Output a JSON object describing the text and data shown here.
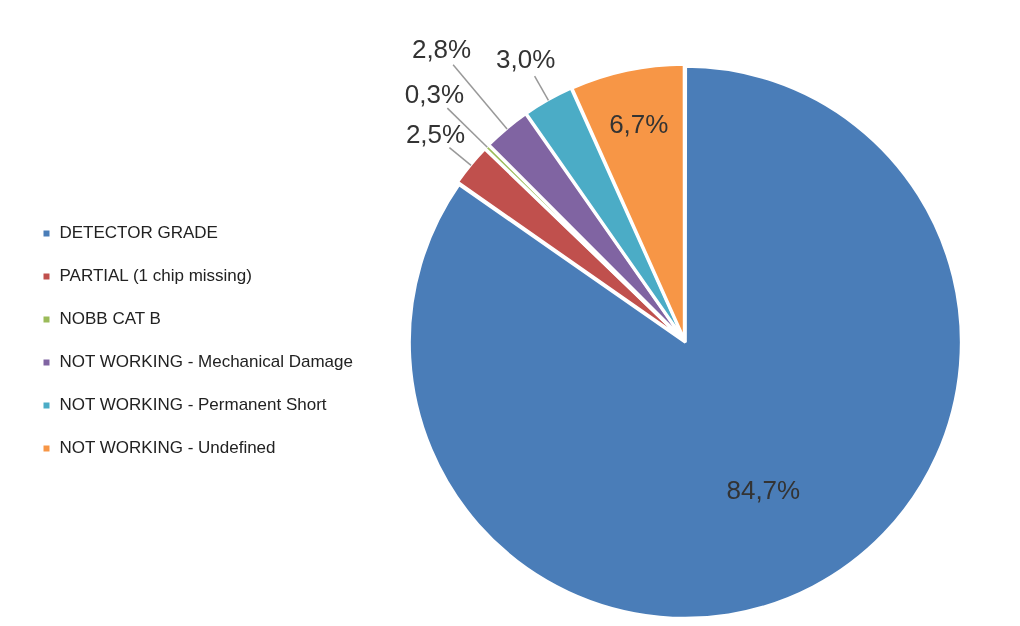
{
  "chart_data": {
    "type": "pie",
    "categories": [
      "DETECTOR GRADE",
      "PARTIAL (1 chip missing)",
      "NOBB CAT B",
      "NOT WORKING - Mechanical Damage",
      "NOT WORKING - Permanent Short",
      "NOT WORKING - Undefined"
    ],
    "values": [
      84.7,
      2.5,
      0.3,
      2.8,
      3.0,
      6.7
    ],
    "value_labels": [
      "84,7%",
      "2,5%",
      "0,3%",
      "2,8%",
      "3,0%",
      "6,7%"
    ],
    "colors": [
      "#4a7db8",
      "#c0504d",
      "#9bbb59",
      "#8064a2",
      "#4bacc6",
      "#f79646"
    ],
    "legend": "left"
  }
}
